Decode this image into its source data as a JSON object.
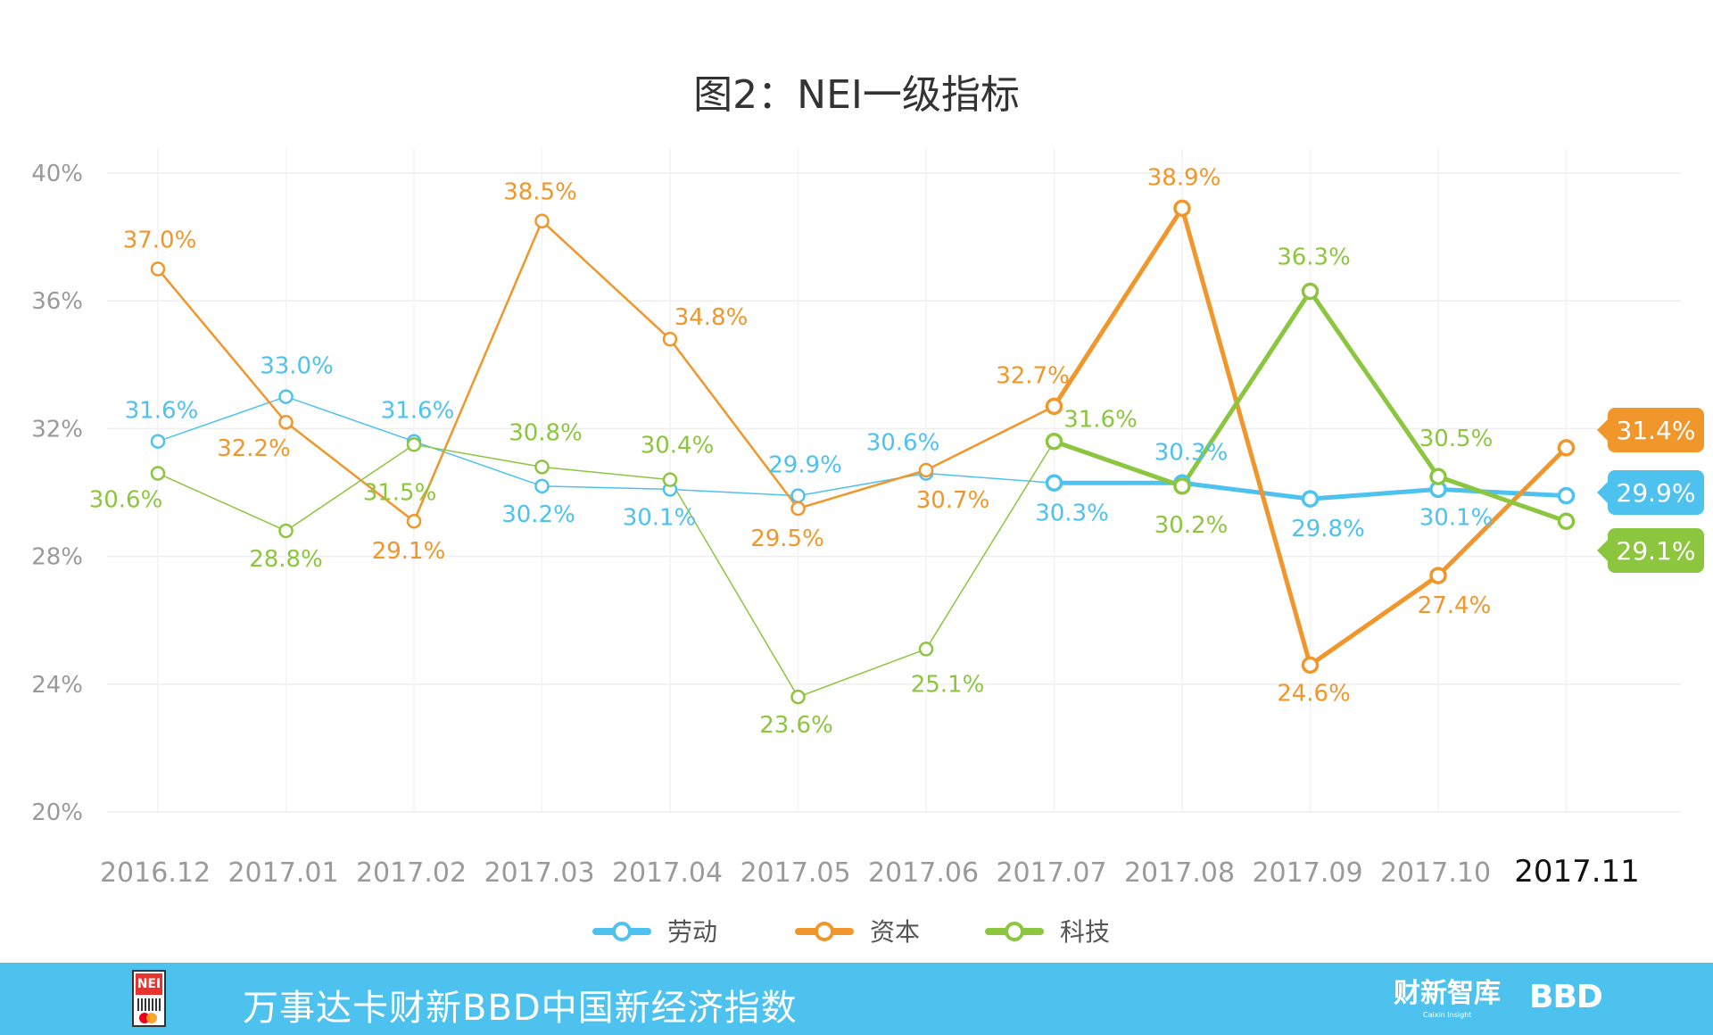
{
  "chart_data": {
    "type": "line",
    "title": "图2：NEI一级指标",
    "categories": [
      "2016.12",
      "2017.01",
      "2017.02",
      "2017.03",
      "2017.04",
      "2017.05",
      "2017.06",
      "2017.07",
      "2017.08",
      "2017.09",
      "2017.10",
      "2017.11"
    ],
    "highlight_category": "2017.11",
    "y_ticks": [
      "20%",
      "24%",
      "28%",
      "32%",
      "36%",
      "40%"
    ],
    "ylim": [
      20,
      40
    ],
    "grid": true,
    "legend_position": "bottom",
    "series": [
      {
        "name": "劳动",
        "color": "#4ec2ee",
        "values": [
          31.6,
          33.0,
          31.6,
          30.2,
          30.1,
          29.9,
          30.6,
          30.3,
          30.3,
          29.8,
          30.1,
          29.9
        ],
        "labels": [
          "31.6%",
          "33.0%",
          "31.6%",
          "30.2%",
          "30.1%",
          "29.9%",
          "30.6%",
          "30.3%",
          "30.3%",
          "29.8%",
          "30.1%",
          ""
        ],
        "final_label": "29.9%"
      },
      {
        "name": "资本",
        "color": "#f0962a",
        "values": [
          37.0,
          32.2,
          29.1,
          38.5,
          34.8,
          29.5,
          30.7,
          32.7,
          38.9,
          24.6,
          27.4,
          31.4
        ],
        "labels": [
          "37.0%",
          "32.2%",
          "29.1%",
          "38.5%",
          "34.8%",
          "29.5%",
          "30.7%",
          "32.7%",
          "38.9%",
          "24.6%",
          "27.4%",
          ""
        ],
        "final_label": "31.4%"
      },
      {
        "name": "科技",
        "color": "#8cc63f",
        "values": [
          30.6,
          28.8,
          31.5,
          30.8,
          30.4,
          23.6,
          25.1,
          31.6,
          30.2,
          36.3,
          30.5,
          29.1
        ],
        "labels": [
          "30.6%",
          "28.8%",
          "31.5%",
          "30.8%",
          "30.4%",
          "23.6%",
          "25.1%",
          "31.6%",
          "30.2%",
          "36.3%",
          "30.5%",
          ""
        ],
        "final_label": "29.1%"
      }
    ]
  },
  "footer": {
    "title": "万事达卡财新BBD中国新经济指数",
    "brand_caixin": "财新智库",
    "brand_caixin_sub": "Caixin Insight",
    "brand_bbd": "BBD",
    "logo_text": "NEI",
    "bg_color": "#4ec2ee"
  }
}
